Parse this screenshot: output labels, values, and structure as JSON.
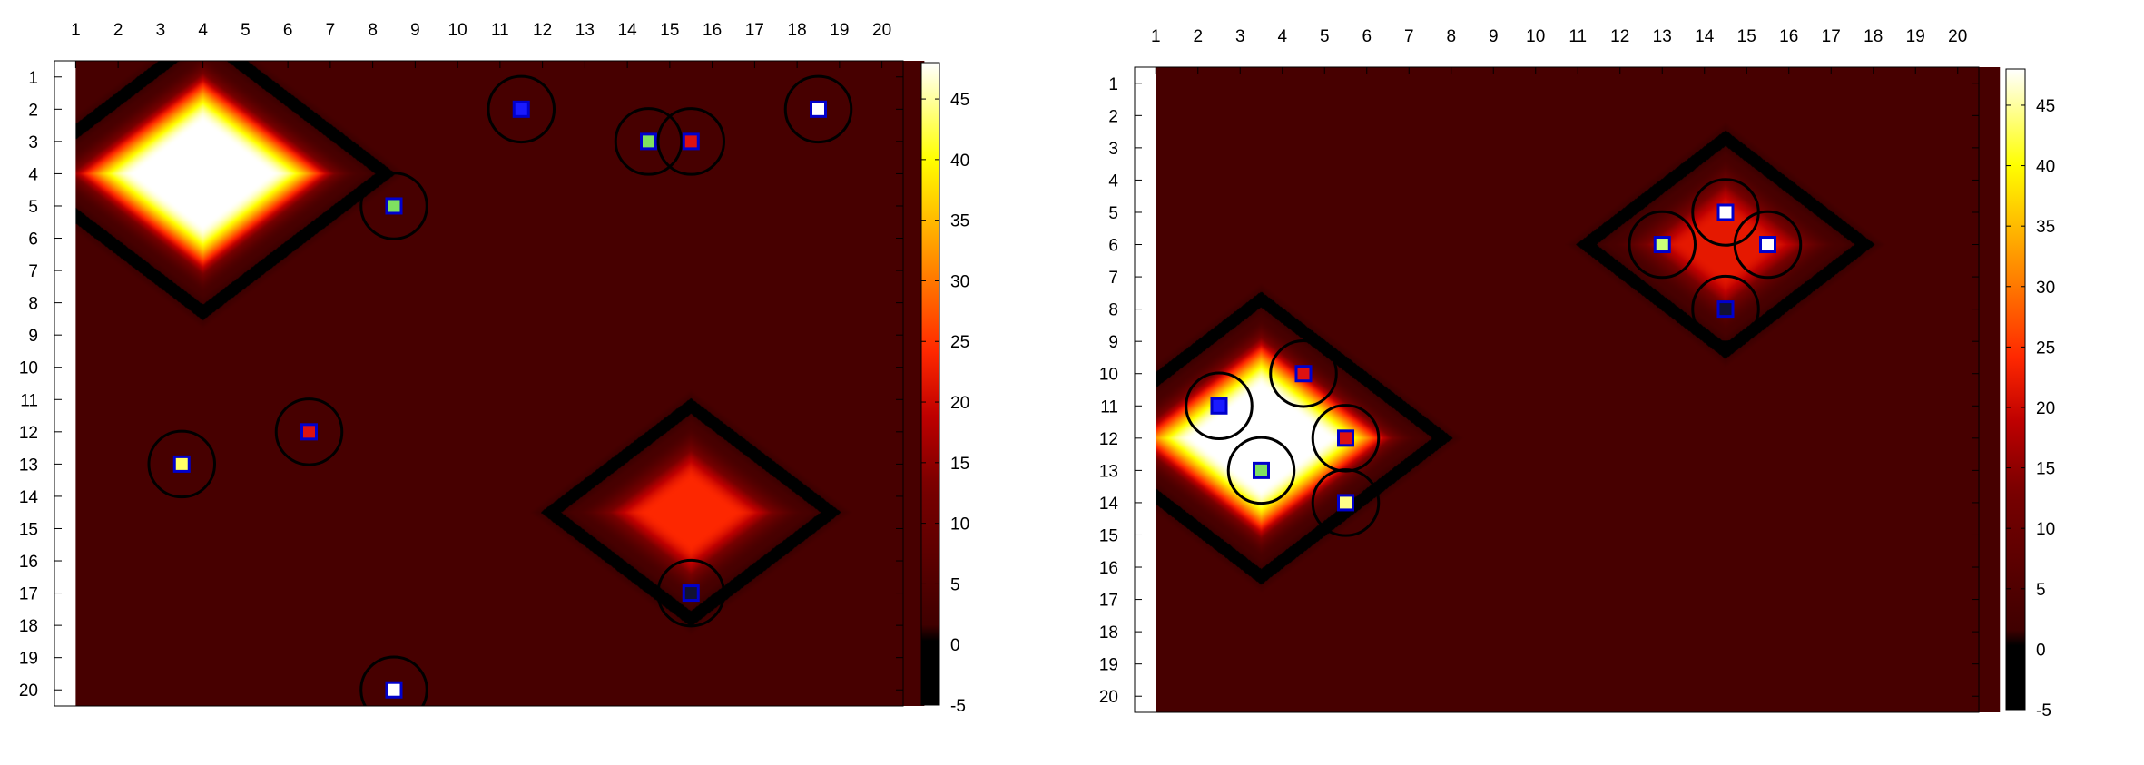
{
  "chart_data": [
    {
      "type": "heatmap",
      "x": [
        1,
        2,
        3,
        4,
        5,
        6,
        7,
        8,
        9,
        10,
        11,
        12,
        13,
        14,
        15,
        16,
        17,
        18,
        19,
        20
      ],
      "y": [
        1,
        2,
        3,
        4,
        5,
        6,
        7,
        8,
        9,
        10,
        11,
        12,
        13,
        14,
        15,
        16,
        17,
        18,
        19,
        20
      ],
      "xlim": [
        0.5,
        20.5
      ],
      "ylim": [
        20.5,
        0.5
      ],
      "x_axis_position": "top",
      "y_axis_orientation": "inverted",
      "heatmap_data_xlim": [
        1.0,
        21.0
      ],
      "colorbar": {
        "range": [
          -5,
          48
        ],
        "ticks": [
          -5,
          0,
          5,
          10,
          15,
          20,
          25,
          30,
          35,
          40,
          45
        ],
        "colormap": "hot"
      },
      "hotspots": [
        {
          "x": 4.0,
          "y": 4.0,
          "peak": 48
        },
        {
          "x": 15.5,
          "y": 14.5,
          "peak": 24
        }
      ],
      "markers": [
        {
          "x": 11.5,
          "y": 2.0,
          "fill": "#1a1aff",
          "edge": "#0000cc"
        },
        {
          "x": 14.5,
          "y": 3.0,
          "fill": "#7fe060",
          "edge": "#0000cc"
        },
        {
          "x": 15.5,
          "y": 3.0,
          "fill": "#dd1111",
          "edge": "#0000cc"
        },
        {
          "x": 18.5,
          "y": 2.0,
          "fill": "#ffffff",
          "edge": "#0000cc"
        },
        {
          "x": 8.5,
          "y": 5.0,
          "fill": "#7fe060",
          "edge": "#0000cc"
        },
        {
          "x": 6.5,
          "y": 12.0,
          "fill": "#dd1111",
          "edge": "#0000cc"
        },
        {
          "x": 3.5,
          "y": 13.0,
          "fill": "#ffff66",
          "edge": "#0000cc"
        },
        {
          "x": 15.5,
          "y": 17.0,
          "fill": "#111133",
          "edge": "#0000cc"
        },
        {
          "x": 8.5,
          "y": 20.0,
          "fill": "#ffffff",
          "edge": "#0000cc"
        }
      ]
    },
    {
      "type": "heatmap",
      "x": [
        1,
        2,
        3,
        4,
        5,
        6,
        7,
        8,
        9,
        10,
        11,
        12,
        13,
        14,
        15,
        16,
        17,
        18,
        19,
        20
      ],
      "y": [
        1,
        2,
        3,
        4,
        5,
        6,
        7,
        8,
        9,
        10,
        11,
        12,
        13,
        14,
        15,
        16,
        17,
        18,
        19,
        20
      ],
      "xlim": [
        0.5,
        20.5
      ],
      "ylim": [
        20.5,
        0.5
      ],
      "x_axis_position": "top",
      "y_axis_orientation": "inverted",
      "heatmap_data_xlim": [
        1.0,
        21.0
      ],
      "colorbar": {
        "range": [
          -5,
          48
        ],
        "ticks": [
          -5,
          0,
          5,
          10,
          15,
          20,
          25,
          30,
          35,
          40,
          45
        ],
        "colormap": "hot"
      },
      "hotspots": [
        {
          "x": 3.5,
          "y": 12.0,
          "peak": 48
        },
        {
          "x": 14.5,
          "y": 6.0,
          "peak": 22
        }
      ],
      "markers": [
        {
          "x": 4.5,
          "y": 10.0,
          "fill": "#dd1111",
          "edge": "#0000cc"
        },
        {
          "x": 2.5,
          "y": 11.0,
          "fill": "#1a1aff",
          "edge": "#0000cc"
        },
        {
          "x": 5.5,
          "y": 12.0,
          "fill": "#dd1111",
          "edge": "#0000cc"
        },
        {
          "x": 3.5,
          "y": 13.0,
          "fill": "#7fe060",
          "edge": "#0000cc"
        },
        {
          "x": 5.5,
          "y": 14.0,
          "fill": "#ffff88",
          "edge": "#0000cc"
        },
        {
          "x": 14.5,
          "y": 5.0,
          "fill": "#ffffff",
          "edge": "#0000cc"
        },
        {
          "x": 13.0,
          "y": 6.0,
          "fill": "#ccff77",
          "edge": "#0000cc"
        },
        {
          "x": 15.5,
          "y": 6.0,
          "fill": "#ffffff",
          "edge": "#0000cc"
        },
        {
          "x": 14.5,
          "y": 8.0,
          "fill": "#111133",
          "edge": "#0000cc"
        }
      ]
    }
  ]
}
